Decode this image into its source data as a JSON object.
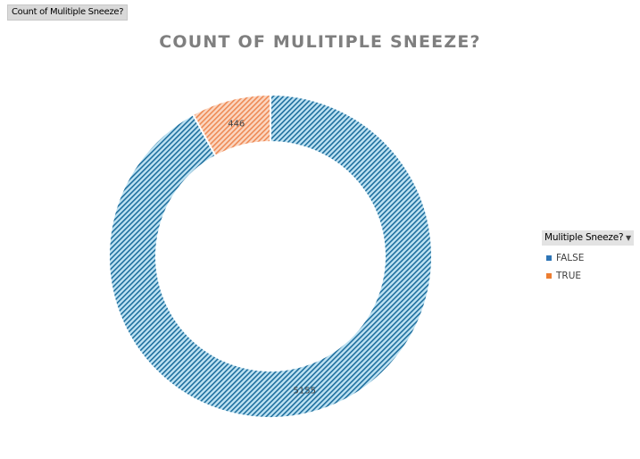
{
  "field_button": {
    "label": "Count of Mulitiple Sneeze?"
  },
  "chart_data": {
    "type": "pie",
    "subtype": "doughnut",
    "title": "COUNT OF MULITIPLE SNEEZE?",
    "categories": [
      "FALSE",
      "TRUE"
    ],
    "values": [
      5155,
      446
    ],
    "data_labels": [
      "5155",
      "446"
    ],
    "colors": [
      "#2e75b6",
      "#ed7d31"
    ],
    "fill_colors": [
      "#bfe3f3",
      "#f8c9ad"
    ],
    "legend_title": "Mulitiple Sneeze?",
    "legend_position": "right"
  },
  "legend": {
    "title": "Mulitiple Sneeze?",
    "items": [
      {
        "label": "FALSE",
        "color": "#2e75b6"
      },
      {
        "label": "TRUE",
        "color": "#ed7d31"
      }
    ]
  }
}
